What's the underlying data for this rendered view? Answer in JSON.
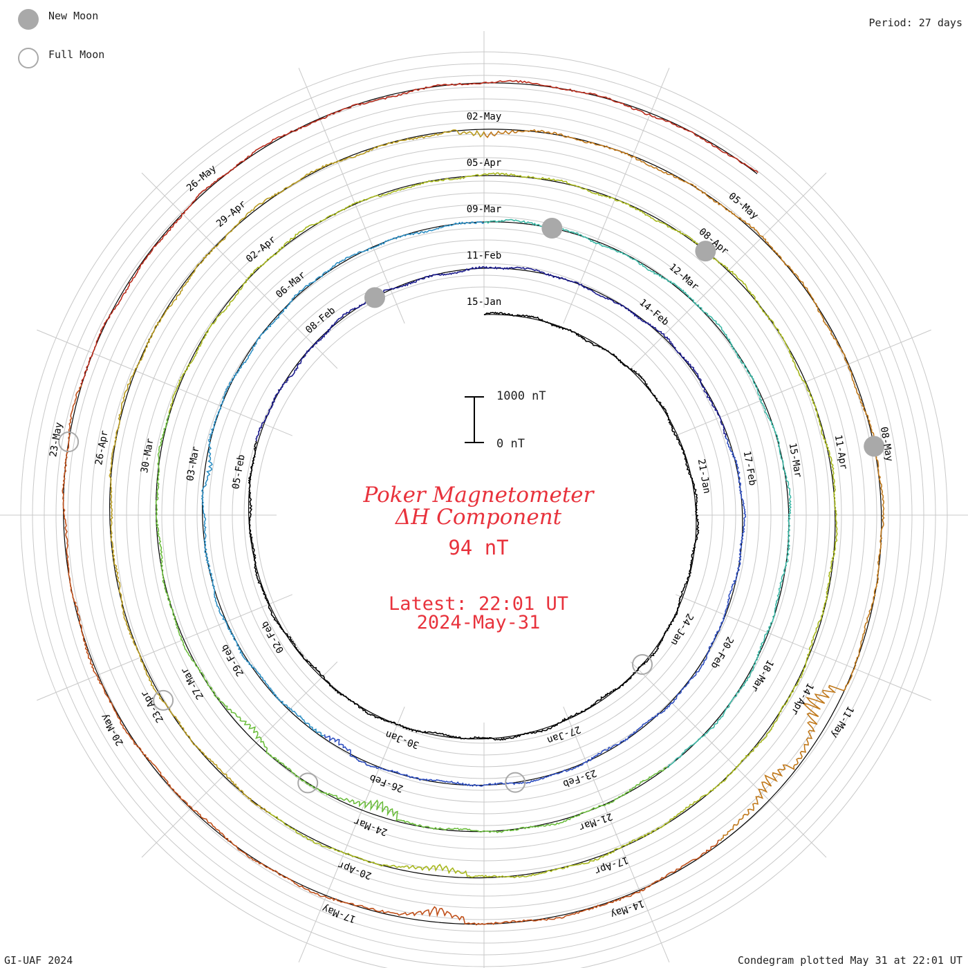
{
  "legend": {
    "new_moon_label": "New Moon",
    "full_moon_label": "Full Moon",
    "moon_fill_color": "#a9a9a9"
  },
  "period_label": "Period: 27 days",
  "footer_left": "GI-UAF 2024",
  "footer_right": "Condegram plotted May 31 at 22:01 UT",
  "center": {
    "title_line1": "Poker Magnetometer",
    "title_line2": "ΔH Component",
    "value": "94 nT",
    "latest_line1": "Latest: 22:01 UT",
    "latest_line2": "2024-May-31",
    "text_color": "#e8323c"
  },
  "scale_bar": {
    "top_label": "1000 nT",
    "bottom_label": "0 nT"
  },
  "chart_data": {
    "type": "line",
    "layout": "spiral condegram",
    "period_days": 27,
    "start": "2024-01-15",
    "end": "2024-05-31",
    "date_labels": [
      "15-Jan",
      "21-Jan",
      "24-Jan",
      "27-Jan",
      "30-Jan",
      "02-Feb",
      "05-Feb",
      "08-Feb",
      "11-Feb",
      "14-Feb",
      "17-Feb",
      "20-Feb",
      "23-Feb",
      "26-Feb",
      "29-Feb",
      "03-Mar",
      "06-Mar",
      "09-Mar",
      "12-Mar",
      "15-Mar",
      "18-Mar",
      "21-Mar",
      "24-Mar",
      "27-Mar",
      "30-Mar",
      "02-Apr",
      "05-Apr",
      "08-Apr",
      "11-Apr",
      "14-Apr",
      "17-Apr",
      "20-Apr",
      "23-Apr",
      "26-Apr",
      "29-Apr",
      "02-May",
      "05-May",
      "08-May",
      "11-May",
      "14-May",
      "17-May",
      "20-May",
      "23-May",
      "26-May"
    ],
    "new_moon_dates": [
      "2024-02-09",
      "2024-03-10",
      "2024-04-08",
      "2024-05-08"
    ],
    "full_moon_dates": [
      "2024-01-25",
      "2024-02-24",
      "2024-03-25",
      "2024-04-23",
      "2024-05-23"
    ],
    "disturbances": [
      {
        "date": "2024-02-27",
        "delta_h_nT": -350
      },
      {
        "date": "2024-03-03",
        "delta_h_nT": -300
      },
      {
        "date": "2024-03-24",
        "delta_h_nT": -800
      },
      {
        "date": "2024-03-26",
        "delta_h_nT": -400
      },
      {
        "date": "2024-04-19",
        "delta_h_nT": -500
      },
      {
        "date": "2024-05-02",
        "delta_h_nT": -400
      },
      {
        "date": "2024-05-11",
        "delta_h_nT": -1500
      },
      {
        "date": "2024-05-12",
        "delta_h_nT": -900
      },
      {
        "date": "2024-05-16",
        "delta_h_nT": -600
      }
    ],
    "latest_value_nT": 94,
    "colors": [
      "#000000",
      "#1a1a8c",
      "#2f4fc0",
      "#2e8fc4",
      "#3cb8a6",
      "#6cbd3e",
      "#a8b81e",
      "#b89a1e",
      "#c0781a",
      "#c0501a",
      "#b82a1a"
    ]
  }
}
